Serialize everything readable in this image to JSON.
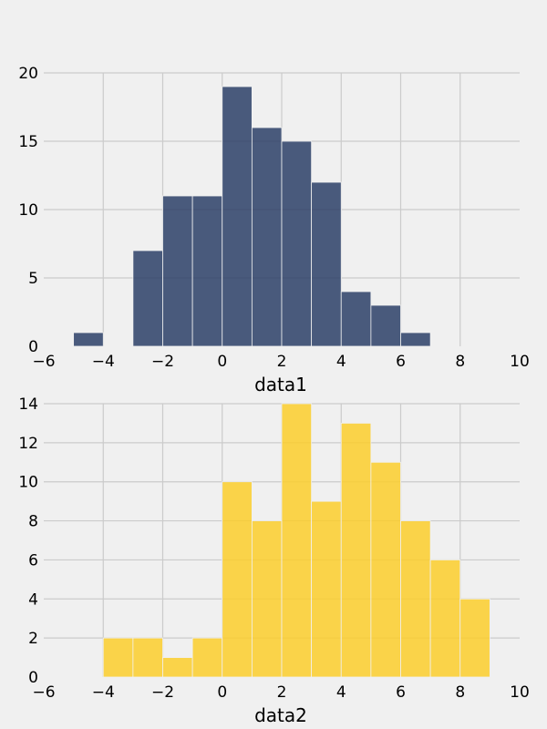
{
  "chart_data": [
    {
      "type": "bar",
      "subtype": "histogram",
      "xlabel": "data1",
      "ylabel": "",
      "xlim": [
        -6,
        10
      ],
      "ylim": [
        0,
        20
      ],
      "xticks": [
        -6,
        -4,
        -2,
        0,
        2,
        4,
        6,
        8,
        10
      ],
      "yticks": [
        0,
        5,
        10,
        15,
        20
      ],
      "grid": true,
      "color": "#2b4067",
      "bins": [
        {
          "start": -5,
          "end": -4,
          "count": 1
        },
        {
          "start": -3,
          "end": -2,
          "count": 7
        },
        {
          "start": -2,
          "end": -1,
          "count": 11
        },
        {
          "start": -1,
          "end": 0,
          "count": 11
        },
        {
          "start": 0,
          "end": 1,
          "count": 19
        },
        {
          "start": 1,
          "end": 2,
          "count": 16
        },
        {
          "start": 2,
          "end": 3,
          "count": 15
        },
        {
          "start": 3,
          "end": 4,
          "count": 12
        },
        {
          "start": 4,
          "end": 5,
          "count": 4
        },
        {
          "start": 5,
          "end": 6,
          "count": 3
        },
        {
          "start": 6,
          "end": 7,
          "count": 1
        }
      ]
    },
    {
      "type": "bar",
      "subtype": "histogram",
      "xlabel": "data2",
      "ylabel": "",
      "xlim": [
        -6,
        10
      ],
      "ylim": [
        0,
        14
      ],
      "xticks": [
        -6,
        -4,
        -2,
        0,
        2,
        4,
        6,
        8,
        10
      ],
      "yticks": [
        0,
        2,
        4,
        6,
        8,
        10,
        12,
        14
      ],
      "grid": true,
      "color": "#fcce2c",
      "bins": [
        {
          "start": -4,
          "end": -3,
          "count": 2
        },
        {
          "start": -3,
          "end": -2,
          "count": 2
        },
        {
          "start": -2,
          "end": -1,
          "count": 1
        },
        {
          "start": -1,
          "end": 0,
          "count": 2
        },
        {
          "start": 0,
          "end": 1,
          "count": 10
        },
        {
          "start": 1,
          "end": 2,
          "count": 8
        },
        {
          "start": 2,
          "end": 3,
          "count": 14
        },
        {
          "start": 3,
          "end": 4,
          "count": 9
        },
        {
          "start": 4,
          "end": 5,
          "count": 13
        },
        {
          "start": 5,
          "end": 6,
          "count": 11
        },
        {
          "start": 6,
          "end": 7,
          "count": 8
        },
        {
          "start": 7,
          "end": 8,
          "count": 6
        },
        {
          "start": 8,
          "end": 9,
          "count": 4
        }
      ]
    }
  ]
}
